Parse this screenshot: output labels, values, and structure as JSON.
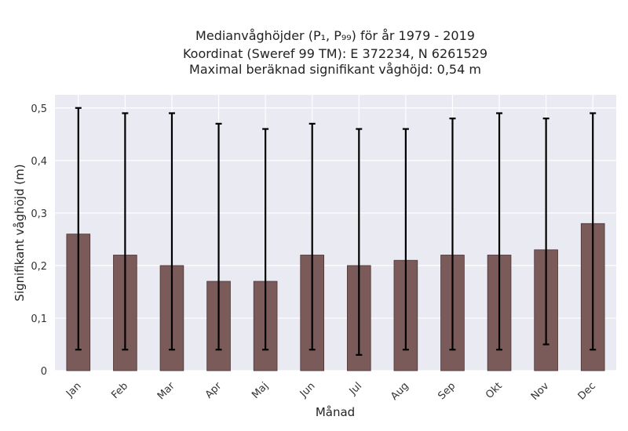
{
  "chart_data": {
    "type": "bar",
    "title_lines": [
      "Medianvåghöjder (P₁, P₉₉) för år 1979 - 2019",
      "Koordinat (Sweref 99 TM): E 372234, N 6261529",
      "Maximal beräknad signifikant våghöjd: 0,54 m"
    ],
    "xlabel": "Månad",
    "ylabel": "Signifikant våghöjd (m)",
    "categories": [
      "Jan",
      "Feb",
      "Mar",
      "Apr",
      "Maj",
      "Jun",
      "Jul",
      "Aug",
      "Sep",
      "Okt",
      "Nov",
      "Dec"
    ],
    "values": [
      0.26,
      0.22,
      0.2,
      0.17,
      0.17,
      0.22,
      0.2,
      0.21,
      0.22,
      0.22,
      0.23,
      0.28
    ],
    "error_low": [
      0.04,
      0.04,
      0.04,
      0.04,
      0.04,
      0.04,
      0.03,
      0.04,
      0.04,
      0.04,
      0.05,
      0.04
    ],
    "error_high": [
      0.5,
      0.49,
      0.49,
      0.47,
      0.46,
      0.47,
      0.46,
      0.46,
      0.48,
      0.49,
      0.48,
      0.49
    ],
    "ylim": [
      0,
      0.525
    ],
    "yticks": [
      0,
      0.1,
      0.2,
      0.3,
      0.4,
      0.5
    ],
    "ytick_labels": [
      "0",
      "0,1",
      "0,2",
      "0,3",
      "0,4",
      "0,5"
    ],
    "grid": true,
    "colors": {
      "bar_fill": "#7b5a5a",
      "bar_edge": "#4a3434",
      "plot_background": "#eaeaf2",
      "grid": "#ffffff",
      "error_bar": "#000000"
    }
  }
}
